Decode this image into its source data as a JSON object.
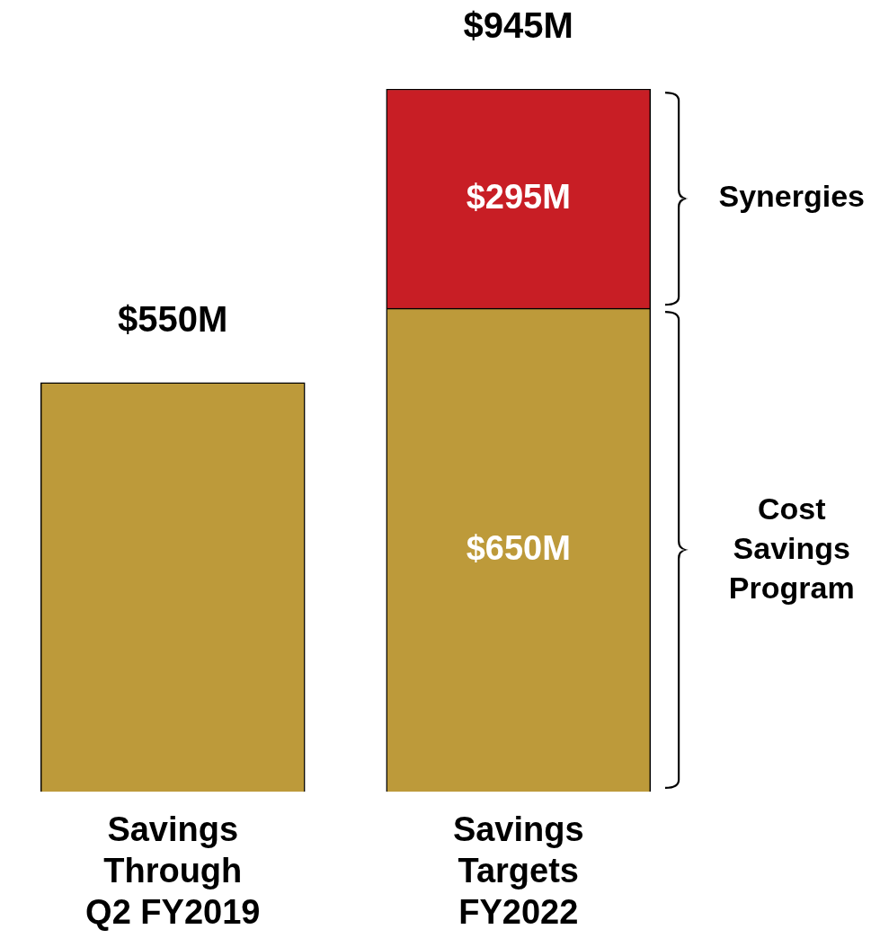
{
  "chart_data": {
    "type": "bar",
    "stacked": true,
    "categories": [
      "Savings Through Q2 FY2019",
      "Savings Targets FY2022"
    ],
    "series": [
      {
        "name": "Cost Savings Program",
        "color": "#bd9a3a",
        "values": [
          550,
          650
        ],
        "value_labels": [
          null,
          "$650M"
        ]
      },
      {
        "name": "Synergies",
        "color": "#c81e25",
        "values": [
          null,
          295
        ],
        "value_labels": [
          null,
          "$295M"
        ]
      }
    ],
    "totals": [
      "$550M",
      "$945M"
    ]
  }
}
